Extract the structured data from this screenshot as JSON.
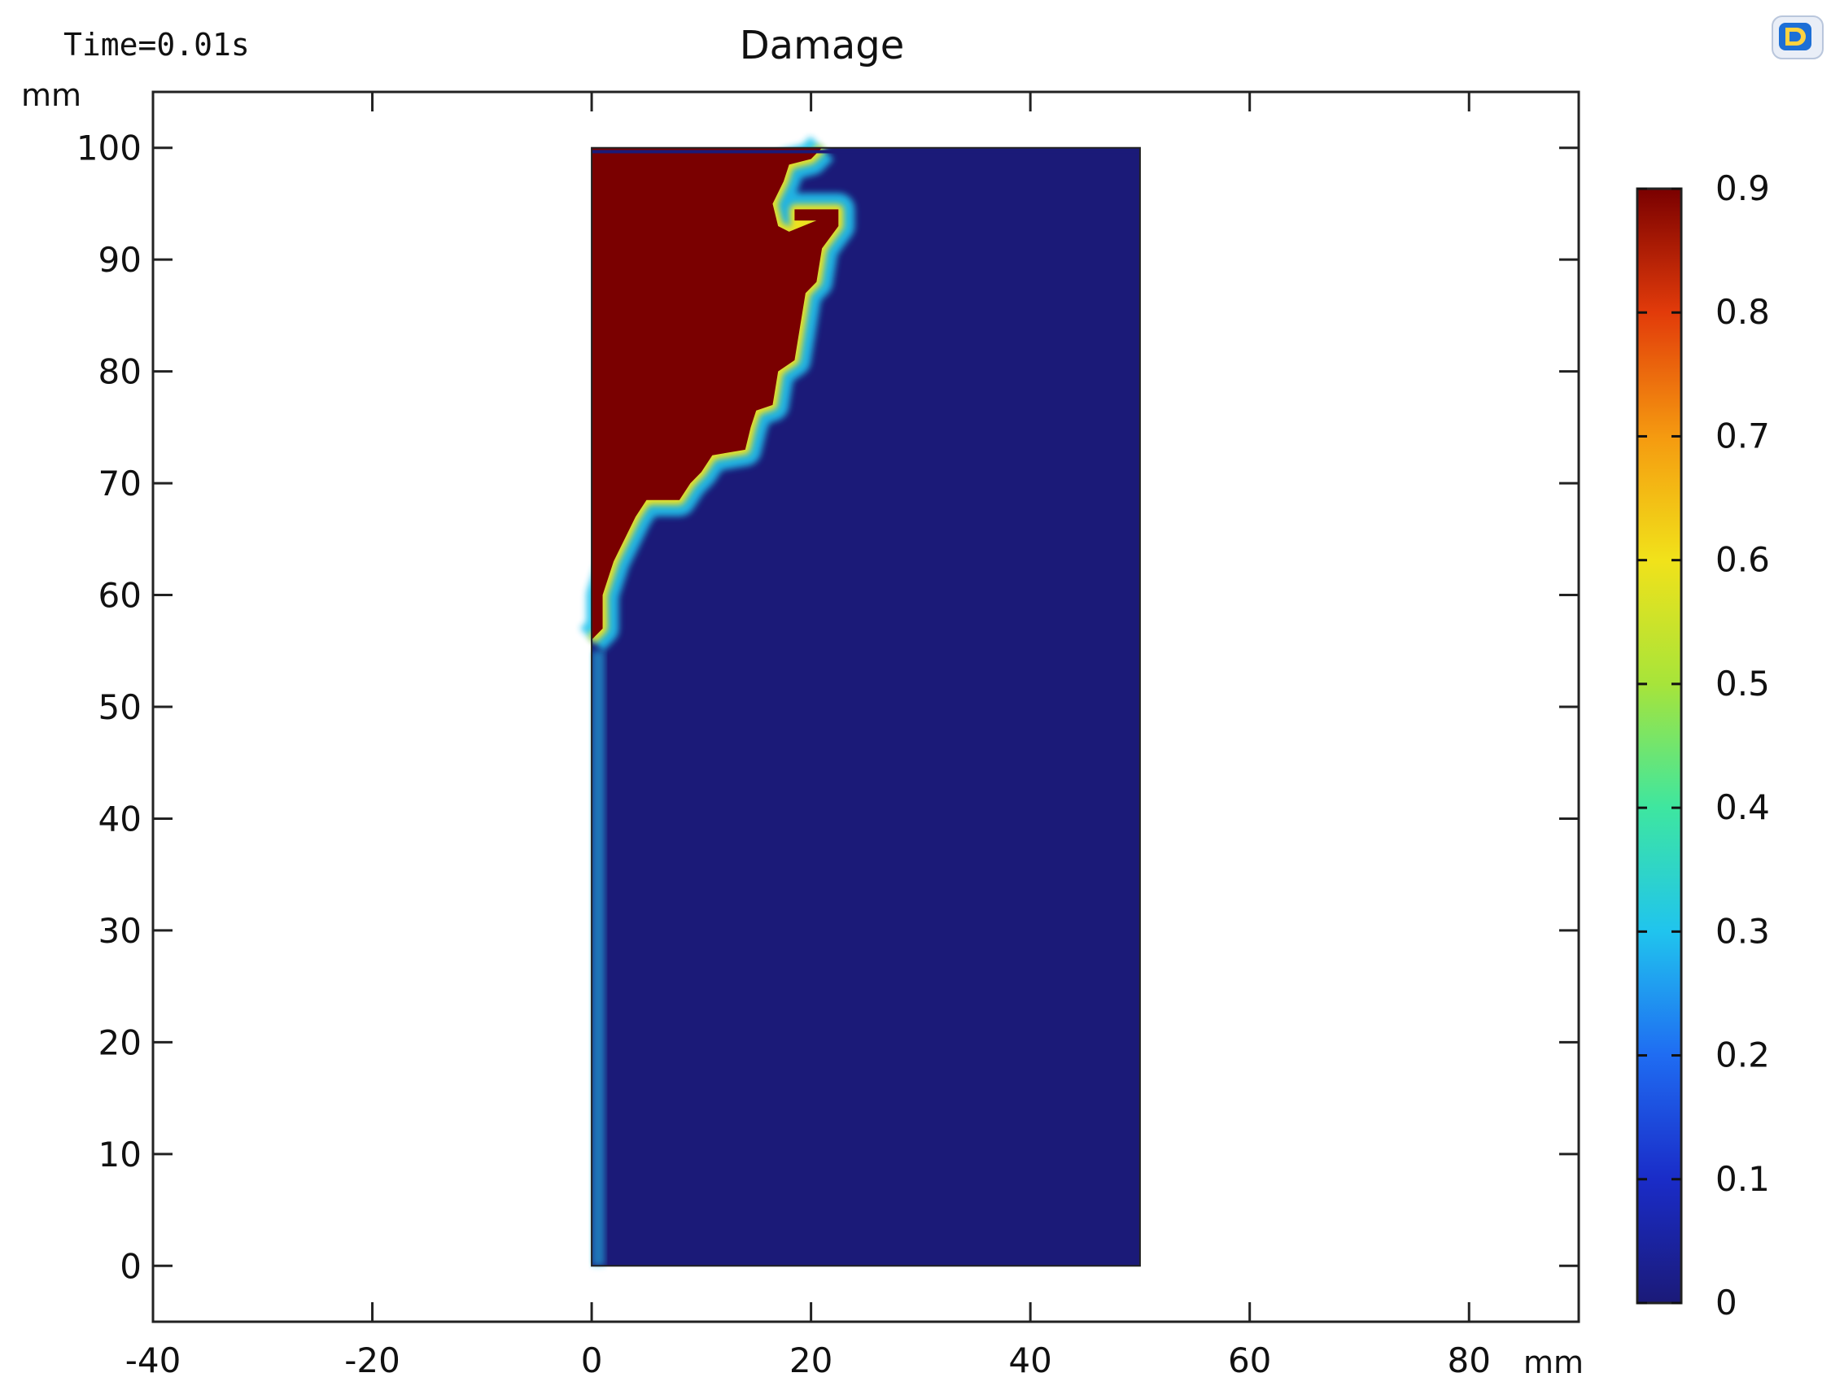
{
  "header": {
    "time_label": "Time=0.01s",
    "title": "Damage"
  },
  "toolbar": {
    "logo_icon": "comsol-logo-icon"
  },
  "chart_data": {
    "type": "heatmap",
    "title": "Damage",
    "annotation": "Time=0.01s",
    "x_unit": "mm",
    "y_unit": "mm",
    "xlim": [
      -40,
      90
    ],
    "ylim": [
      -5,
      105
    ],
    "x_ticks": [
      -40,
      -20,
      0,
      20,
      40,
      60,
      80
    ],
    "y_ticks": [
      0,
      10,
      20,
      30,
      40,
      50,
      60,
      70,
      80,
      90,
      100
    ],
    "domain": {
      "x": [
        0,
        50
      ],
      "y": [
        0,
        100
      ]
    },
    "damaged_region": {
      "value": 0.9,
      "boundary": [
        [
          0,
          56
        ],
        [
          1,
          57
        ],
        [
          1,
          60
        ],
        [
          2,
          63
        ],
        [
          3,
          65
        ],
        [
          4,
          67
        ],
        [
          5,
          68.5
        ],
        [
          8,
          68.5
        ],
        [
          9,
          70
        ],
        [
          10,
          71
        ],
        [
          11,
          72.5
        ],
        [
          14,
          73
        ],
        [
          14.5,
          75
        ],
        [
          15,
          76.5
        ],
        [
          16.5,
          77
        ],
        [
          17,
          80
        ],
        [
          18.5,
          81
        ],
        [
          19,
          84
        ],
        [
          19.5,
          87
        ],
        [
          20.5,
          88
        ],
        [
          21,
          91
        ],
        [
          22.5,
          93
        ],
        [
          22.5,
          94.5
        ],
        [
          18.5,
          94.5
        ],
        [
          18.5,
          93.5
        ],
        [
          20.5,
          93.5
        ],
        [
          18,
          92.5
        ],
        [
          17,
          93
        ],
        [
          16.5,
          95
        ],
        [
          17.5,
          97
        ],
        [
          18,
          98.5
        ],
        [
          20,
          99
        ],
        [
          21,
          100
        ]
      ]
    },
    "transition_tip": [
      21,
      100,
      26,
      100
    ],
    "background_value": 0,
    "colorbar": {
      "min": 0,
      "max": 0.9,
      "ticks": [
        "0",
        "0.1",
        "0.2",
        "0.3",
        "0.4",
        "0.5",
        "0.6",
        "0.7",
        "0.8",
        "0.9"
      ],
      "colormap": [
        "#1b1a78",
        "#1a2cc8",
        "#1f6cf2",
        "#20c4ee",
        "#3ee6a0",
        "#a7e43a",
        "#f1e21a",
        "#f59a10",
        "#e23b0a",
        "#7a0000"
      ]
    }
  }
}
